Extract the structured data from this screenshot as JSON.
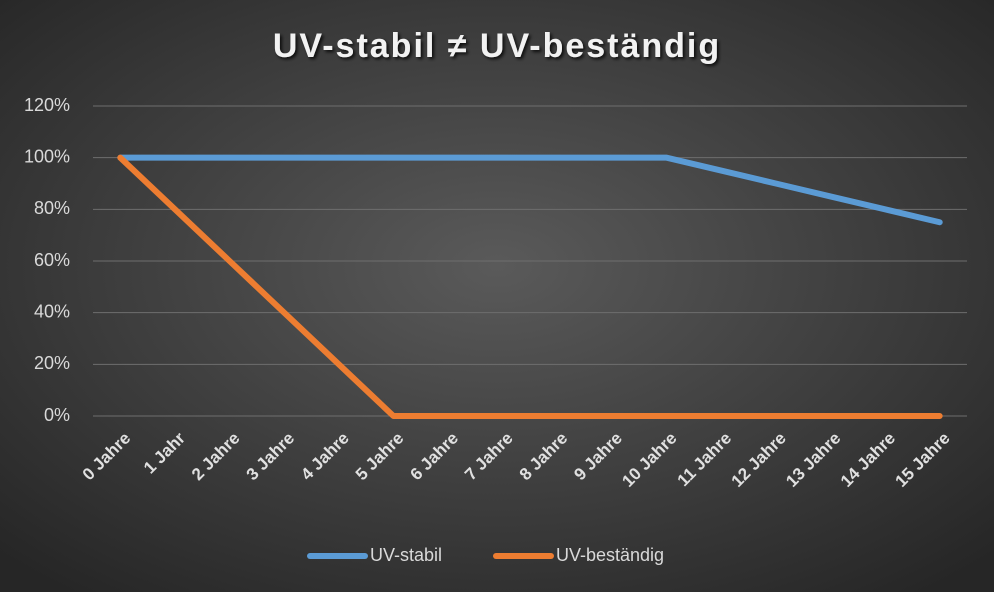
{
  "chart_data": {
    "type": "line",
    "title": "UV-stabil ≠ UV-beständig",
    "categories": [
      "0 Jahre",
      "1 Jahr",
      "2 Jahre",
      "3 Jahre",
      "4 Jahre",
      "5 Jahre",
      "6 Jahre",
      "7 Jahre",
      "8 Jahre",
      "9 Jahre",
      "10 Jahre",
      "11 Jahre",
      "12 Jahre",
      "13 Jahre",
      "14 Jahre",
      "15 Jahre"
    ],
    "series": [
      {
        "name": "UV-stabil",
        "color": "#5b9bd5",
        "values": [
          100,
          100,
          100,
          100,
          100,
          100,
          100,
          100,
          100,
          100,
          100,
          95,
          90,
          85,
          80,
          75
        ]
      },
      {
        "name": "UV-beständig",
        "color": "#ed7d31",
        "values": [
          100,
          80,
          60,
          40,
          20,
          0,
          0,
          0,
          0,
          0,
          0,
          0,
          0,
          0,
          0,
          0
        ]
      }
    ],
    "ylim": [
      0,
      120
    ],
    "yticks": [
      {
        "value": 0,
        "label": "0%"
      },
      {
        "value": 20,
        "label": "20%"
      },
      {
        "value": 40,
        "label": "40%"
      },
      {
        "value": 60,
        "label": "60%"
      },
      {
        "value": 80,
        "label": "80%"
      },
      {
        "value": 100,
        "label": "100%"
      },
      {
        "value": 120,
        "label": "120%"
      }
    ],
    "grid": true,
    "legend": "bottom"
  }
}
